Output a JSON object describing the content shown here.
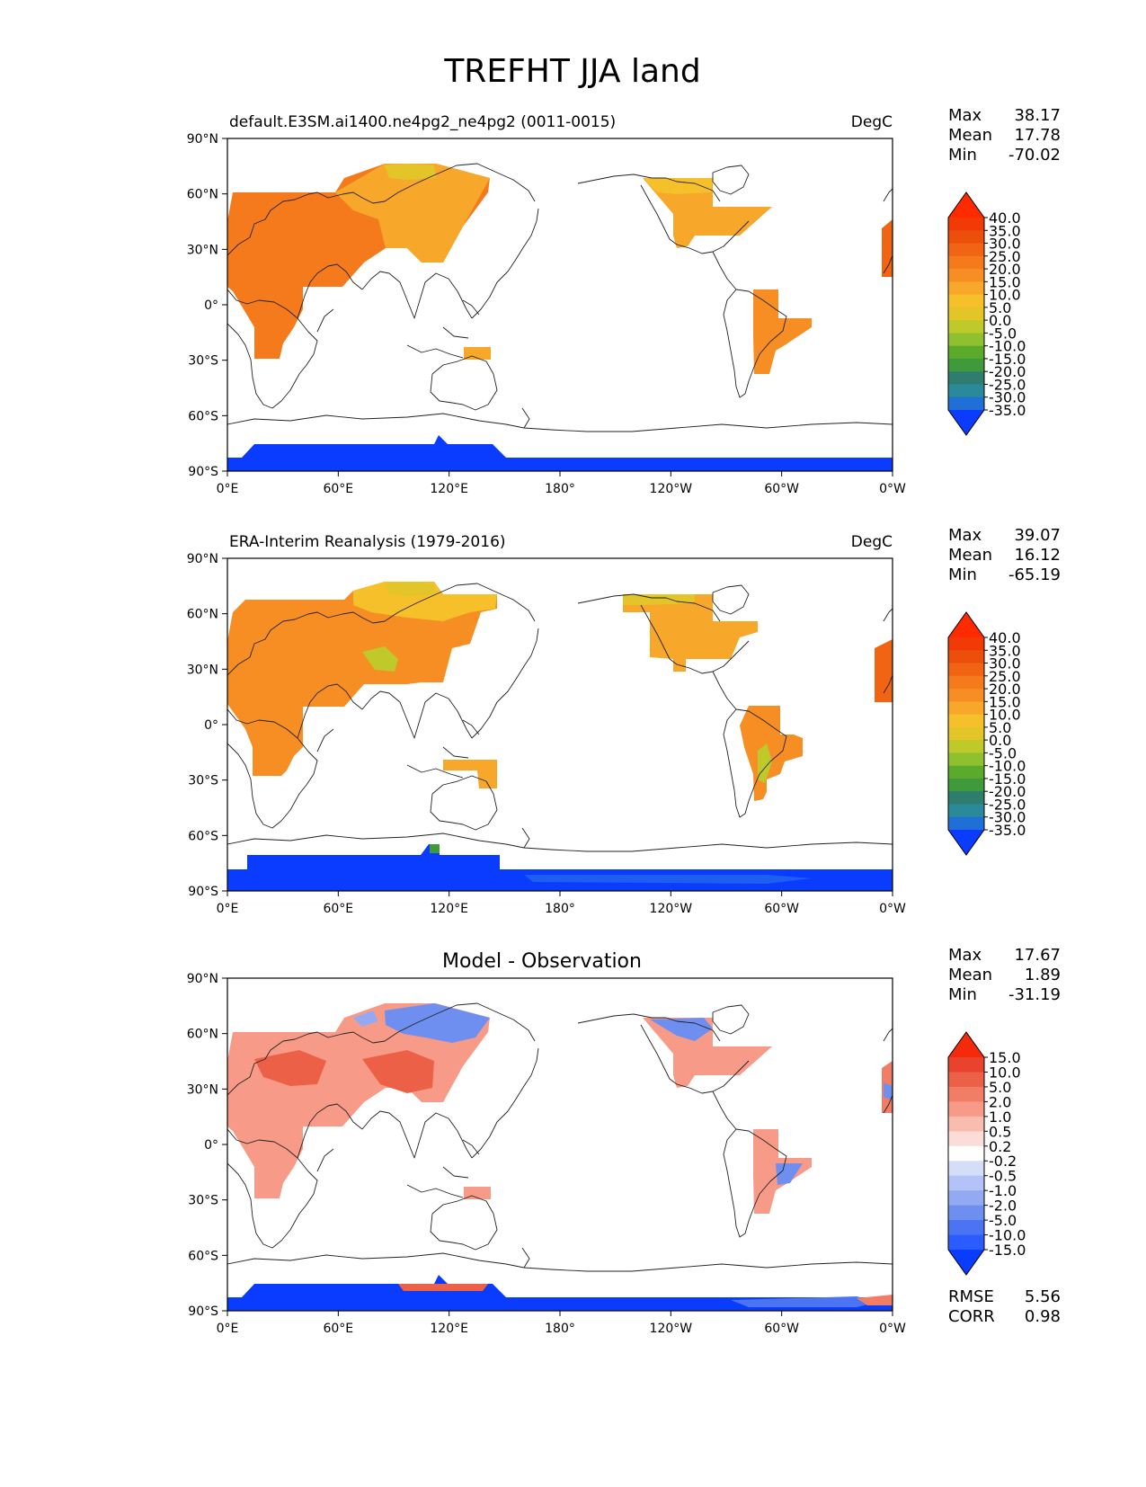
{
  "title": "TREFHT JJA land",
  "axis": {
    "lat_labels": [
      "90°N",
      "60°N",
      "30°N",
      "0°",
      "30°S",
      "60°S",
      "90°S"
    ],
    "lon_labels": [
      "0°E",
      "60°E",
      "120°E",
      "180°",
      "120°W",
      "60°W",
      "0°W"
    ]
  },
  "colors": {
    "model_scale": [
      "#0a3cff",
      "#1f6fd6",
      "#2a8a9a",
      "#2e7d6e",
      "#3e9a3a",
      "#5caa2c",
      "#8fc02e",
      "#bfc92a",
      "#e3c52a",
      "#f6c02a",
      "#f7a72a",
      "#f78e24",
      "#f57a1c",
      "#f06414",
      "#ec4e0c",
      "#f23a06",
      "#ff2a00"
    ],
    "diff_scale": [
      "#0a3cff",
      "#2a5cff",
      "#4a74f2",
      "#6f8ff0",
      "#93aaf2",
      "#b4c3f7",
      "#d5def9",
      "#ffffff",
      "#fbdcd6",
      "#f9bcae",
      "#f79b88",
      "#f27d66",
      "#ed6048",
      "#e9432d",
      "#f52a0a"
    ]
  },
  "panels": [
    {
      "id": "model",
      "left_title": "default.E3SM.ai1400.ne4pg2_ne4pg2 (0011-0015)",
      "right_title": "DegC",
      "center_title": "",
      "stats": [
        {
          "label": "Max",
          "value": "38.17"
        },
        {
          "label": "Mean",
          "value": "17.78"
        },
        {
          "label": "Min",
          "value": "-70.02"
        }
      ],
      "colorbar_labels": [
        "40.0",
        "35.0",
        "30.0",
        "25.0",
        "20.0",
        "15.0",
        "10.0",
        "5.0",
        "0.0",
        "-5.0",
        "-10.0",
        "-15.0",
        "-20.0",
        "-25.0",
        "-30.0",
        "-35.0"
      ],
      "extra_stats": []
    },
    {
      "id": "obs",
      "left_title": "ERA-Interim Reanalysis (1979-2016)",
      "right_title": "DegC",
      "center_title": "",
      "stats": [
        {
          "label": "Max",
          "value": "39.07"
        },
        {
          "label": "Mean",
          "value": "16.12"
        },
        {
          "label": "Min",
          "value": "-65.19"
        }
      ],
      "colorbar_labels": [
        "40.0",
        "35.0",
        "30.0",
        "25.0",
        "20.0",
        "15.0",
        "10.0",
        "5.0",
        "0.0",
        "-5.0",
        "-10.0",
        "-15.0",
        "-20.0",
        "-25.0",
        "-30.0",
        "-35.0"
      ],
      "extra_stats": []
    },
    {
      "id": "diff",
      "left_title": "",
      "right_title": "",
      "center_title": "Model - Observation",
      "stats": [
        {
          "label": "Max",
          "value": "17.67"
        },
        {
          "label": "Mean",
          "value": "1.89"
        },
        {
          "label": "Min",
          "value": "-31.19"
        }
      ],
      "colorbar_labels": [
        "15.0",
        "10.0",
        "5.0",
        "2.0",
        "1.0",
        "0.5",
        "0.2",
        "-0.2",
        "-0.5",
        "-1.0",
        "-2.0",
        "-5.0",
        "-10.0",
        "-15.0"
      ],
      "extra_stats": [
        {
          "label": "RMSE",
          "value": "5.56"
        },
        {
          "label": "CORR",
          "value": "0.98"
        }
      ]
    }
  ]
}
